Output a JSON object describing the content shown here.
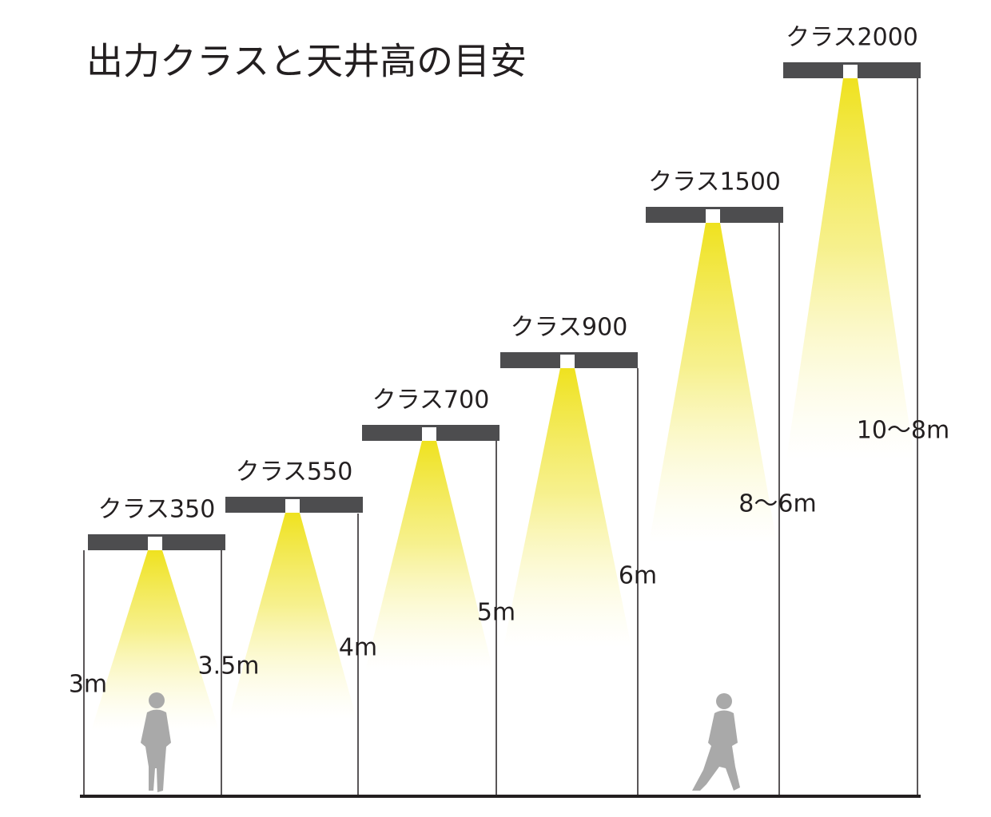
{
  "title": "出力クラスと天井高の目安",
  "fixtures": [
    {
      "label": "クラス350"
    },
    {
      "label": "クラス550"
    },
    {
      "label": "クラス700"
    },
    {
      "label": "クラス900"
    },
    {
      "label": "クラス1500"
    },
    {
      "label": "クラス2000"
    }
  ],
  "heights": [
    "3m",
    "3.5m",
    "4m",
    "5m",
    "6m",
    "8〜6m",
    "10〜8m"
  ]
}
